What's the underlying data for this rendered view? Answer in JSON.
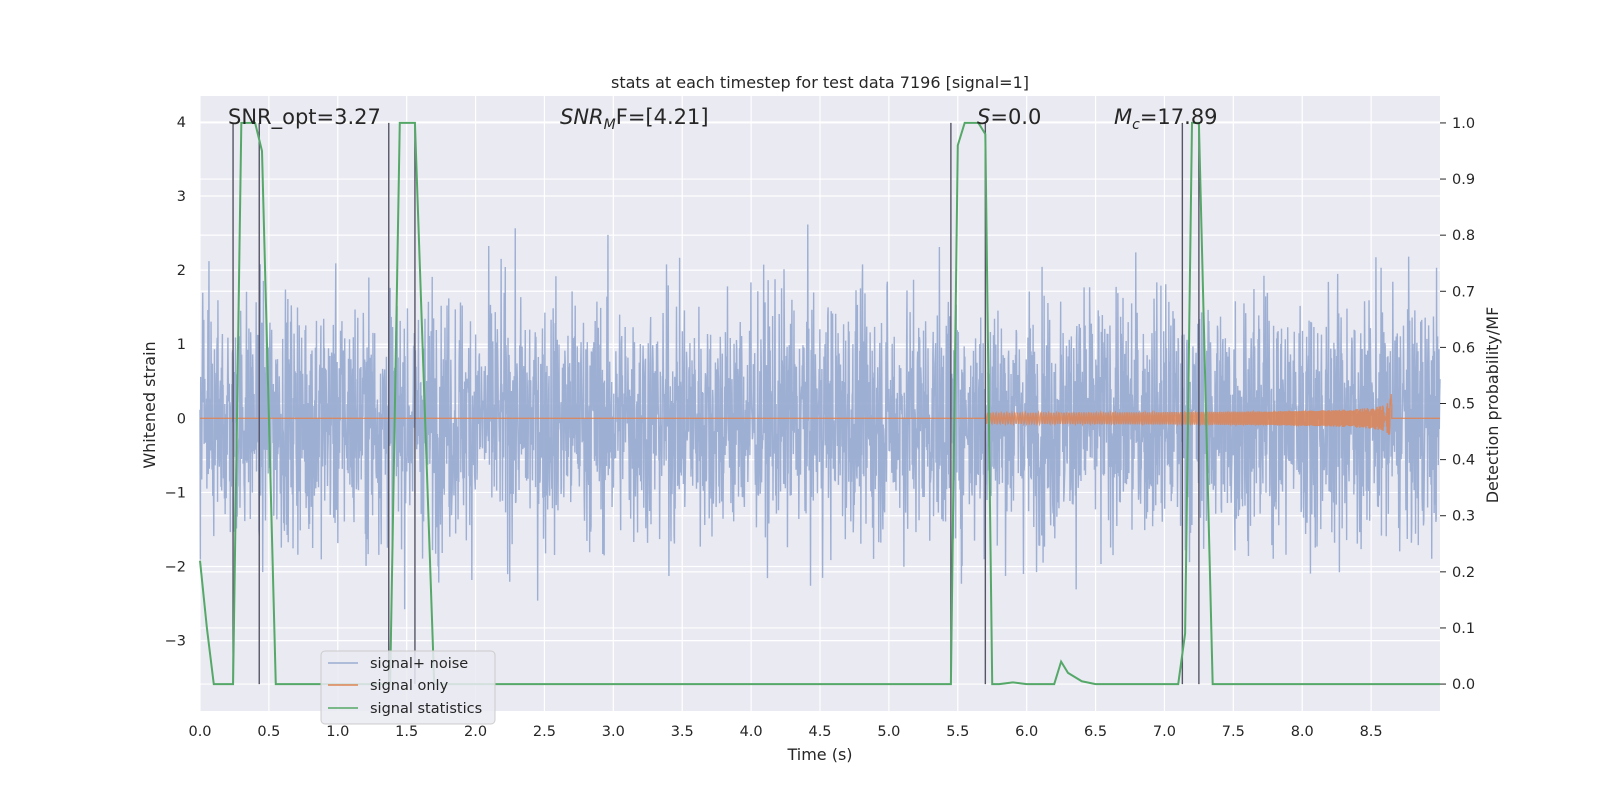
{
  "chart_data": {
    "type": "line",
    "title": "stats at each timestep for test data 7196 [signal=1]",
    "xlabel": "Time (s)",
    "ylabel": "Whitened strain",
    "y2label": "Detection probability/MF",
    "xlim": [
      0,
      9.0
    ],
    "ylim": [
      -3.95,
      4.35
    ],
    "y2lim": [
      -0.048,
      1.048
    ],
    "xticks": [
      0.0,
      0.5,
      1.0,
      1.5,
      2.0,
      2.5,
      3.0,
      3.5,
      4.0,
      4.5,
      5.0,
      5.5,
      6.0,
      6.5,
      7.0,
      7.5,
      8.0,
      8.5
    ],
    "xtick_labels": [
      "0.0",
      "0.5",
      "1.0",
      "1.5",
      "2.0",
      "2.5",
      "3.0",
      "3.5",
      "4.0",
      "4.5",
      "5.0",
      "5.5",
      "6.0",
      "6.5",
      "7.0",
      "7.5",
      "8.0",
      "8.5"
    ],
    "yticks": [
      4,
      3,
      2,
      1,
      0,
      -1,
      -2,
      -3
    ],
    "ytick_labels": [
      "4",
      "3",
      "2",
      "1",
      "0",
      "−1",
      "−2",
      "−3"
    ],
    "y2ticks": [
      1.0,
      0.9,
      0.8,
      0.7,
      0.6,
      0.5,
      0.4,
      0.3,
      0.2,
      0.1,
      0.0
    ],
    "y2tick_labels": [
      "1.0",
      "0.9",
      "0.8",
      "0.7",
      "0.6",
      "0.5",
      "0.4",
      "0.3",
      "0.2",
      "0.1",
      "0.0"
    ],
    "grid": true,
    "legend_position": "lower-left",
    "annotations": {
      "snr_opt": "SNR_opt=3.27",
      "snr_mf_main": "SNR",
      "snr_mf_sub": "M",
      "snr_mf_rest": "F=[4.21]",
      "s_main": "S",
      "s_rest": "=0.0",
      "mc_main": "M",
      "mc_sub": "c",
      "mc_rest": "=17.89"
    },
    "series": [
      {
        "name": "signal+ noise",
        "color": "#9aacd2",
        "note_values": "dense whitened noise, amplitude roughly within ±3.8 over 0–9 s"
      },
      {
        "name": "signal only",
        "color": "#dd8452",
        "chirp": {
          "t_start": 5.7,
          "t_end": 8.65,
          "amp_peak": 0.6
        }
      },
      {
        "name": "signal statistics",
        "color": "#55a868",
        "x": [
          0.0,
          0.05,
          0.1,
          0.2,
          0.24,
          0.3,
          0.4,
          0.45,
          0.55,
          0.6,
          1.3,
          1.38,
          1.45,
          1.56,
          1.7,
          1.8,
          5.3,
          5.45,
          5.5,
          5.55,
          5.6,
          5.65,
          5.7,
          5.75,
          5.8,
          5.9,
          6.0,
          6.2,
          6.25,
          6.3,
          6.4,
          6.5,
          7.0,
          7.1,
          7.15,
          7.2,
          7.25,
          7.3,
          7.35,
          7.4,
          9.0
        ],
        "y": [
          0.22,
          0.1,
          0.0,
          0.0,
          0.0,
          1.0,
          1.0,
          0.95,
          0.0,
          0.0,
          0.0,
          0.0,
          1.0,
          1.0,
          0.0,
          0.0,
          0.0,
          0.0,
          0.96,
          1.0,
          1.0,
          1.0,
          0.98,
          0.0,
          0.0,
          0.003,
          0.0,
          0.0,
          0.04,
          0.02,
          0.005,
          0.0,
          0.0,
          0.0,
          0.09,
          1.0,
          1.0,
          0.5,
          0.0,
          0.0,
          0.0
        ]
      }
    ],
    "vlines": [
      0.24,
      0.43,
      1.37,
      1.56,
      5.45,
      5.7,
      7.13,
      7.25
    ],
    "vline_color": "#555566",
    "legend": [
      "signal+ noise",
      "signal only",
      "signal statistics"
    ]
  }
}
